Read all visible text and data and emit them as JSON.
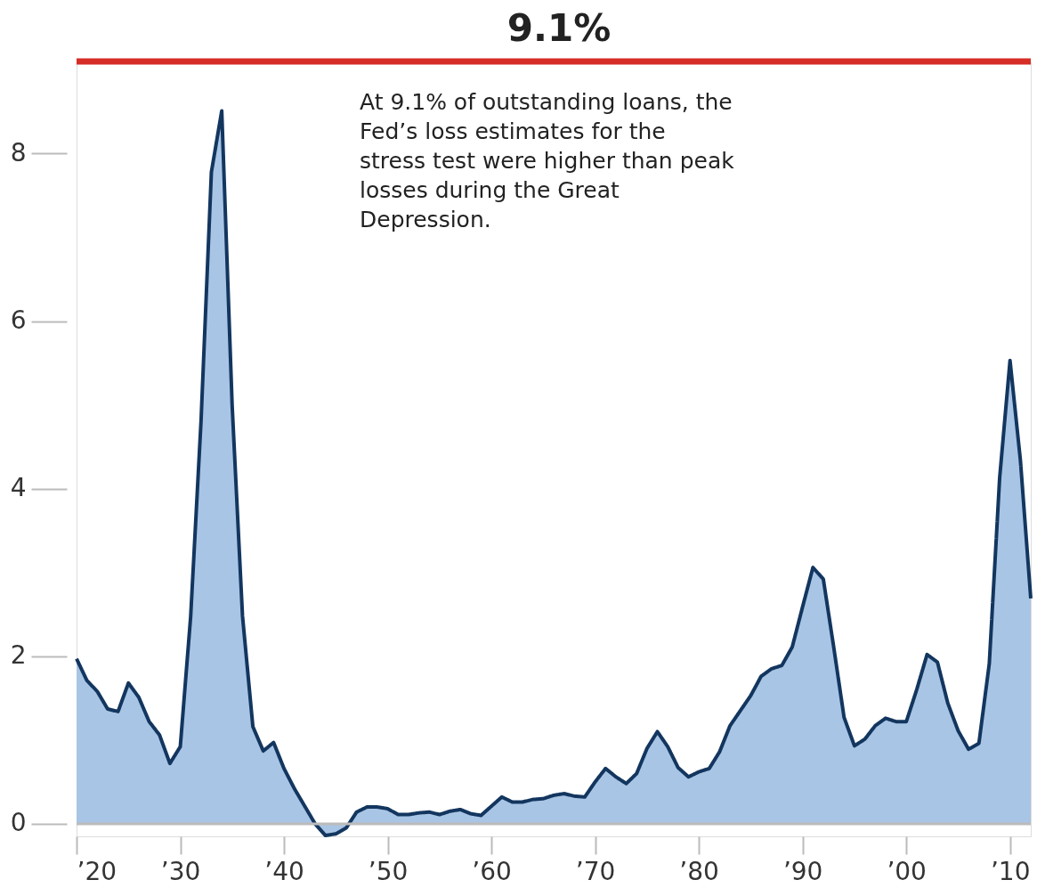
{
  "chart_data": {
    "type": "area",
    "x": [
      1920,
      1921,
      1922,
      1923,
      1924,
      1925,
      1926,
      1927,
      1928,
      1929,
      1930,
      1931,
      1932,
      1933,
      1934,
      1935,
      1936,
      1937,
      1938,
      1939,
      1940,
      1941,
      1942,
      1943,
      1944,
      1945,
      1946,
      1947,
      1948,
      1949,
      1950,
      1951,
      1952,
      1953,
      1954,
      1955,
      1956,
      1957,
      1958,
      1959,
      1960,
      1961,
      1962,
      1963,
      1964,
      1965,
      1966,
      1967,
      1968,
      1969,
      1970,
      1971,
      1972,
      1973,
      1974,
      1975,
      1976,
      1977,
      1978,
      1979,
      1980,
      1981,
      1982,
      1983,
      1984,
      1985,
      1986,
      1987,
      1988,
      1989,
      1990,
      1991,
      1992,
      1993,
      1994,
      1995,
      1996,
      1997,
      1998,
      1999,
      2000,
      2001,
      2002,
      2003,
      2004,
      2005,
      2006,
      2007,
      2008,
      2009,
      2010,
      2011,
      2012
    ],
    "series": [
      {
        "color": "#13365f",
        "values": [
          1.97,
          1.71,
          1.58,
          1.37,
          1.34,
          1.68,
          1.51,
          1.22,
          1.06,
          0.72,
          0.92,
          2.47,
          4.8,
          7.78,
          8.51,
          5.0,
          2.48,
          1.16,
          0.87,
          0.97,
          0.66,
          0.42,
          0.21,
          0.0,
          -0.14,
          -0.12,
          -0.05,
          0.14,
          0.2,
          0.2,
          0.18,
          0.11,
          0.11,
          0.13,
          0.14,
          0.11,
          0.15,
          0.17,
          0.12,
          0.1,
          0.21,
          0.32,
          0.26,
          0.26,
          0.29,
          0.3,
          0.34,
          0.36,
          0.33,
          0.32,
          0.5,
          0.66,
          0.56,
          0.48,
          0.6,
          0.9,
          1.1,
          0.92,
          0.67,
          0.56,
          0.62,
          0.66,
          0.86,
          1.17,
          1.35,
          1.53,
          1.76,
          1.85,
          1.89,
          2.11,
          2.59,
          3.06,
          2.92,
          2.11,
          1.27,
          0.93,
          1.01,
          1.17,
          1.26,
          1.22,
          1.22,
          1.6,
          2.02,
          1.93,
          1.44,
          1.11,
          0.89,
          0.96,
          1.91,
          4.13,
          5.53,
          4.34,
          2.69
        ]
      }
    ],
    "xlim": [
      1920,
      2012
    ],
    "xticks": [
      {
        "value": 1920,
        "label": "’20"
      },
      {
        "value": 1930,
        "label": "’30"
      },
      {
        "value": 1940,
        "label": "’40"
      },
      {
        "value": 1950,
        "label": "’50"
      },
      {
        "value": 1960,
        "label": "’60"
      },
      {
        "value": 1970,
        "label": "’70"
      },
      {
        "value": 1980,
        "label": "’80"
      },
      {
        "value": 1990,
        "label": "’90"
      },
      {
        "value": 2000,
        "label": "’00"
      },
      {
        "value": 2010,
        "label": "’10"
      }
    ],
    "ylim": [
      -0.15,
      9.1
    ],
    "yticks": [
      0,
      2,
      4,
      6,
      8
    ],
    "ref_lines": [
      {
        "axis": "y",
        "value": 9.1,
        "label": "9.1%",
        "color": "#d62d26"
      },
      {
        "axis": "y",
        "value": 0,
        "color": "#bbbbbb"
      }
    ],
    "annotations": [
      "At 9.1% of outstanding loans, the Fed’s loss estimates for the stress test were higher than peak losses during the Great Depression."
    ],
    "grid": false,
    "marker": "none"
  }
}
